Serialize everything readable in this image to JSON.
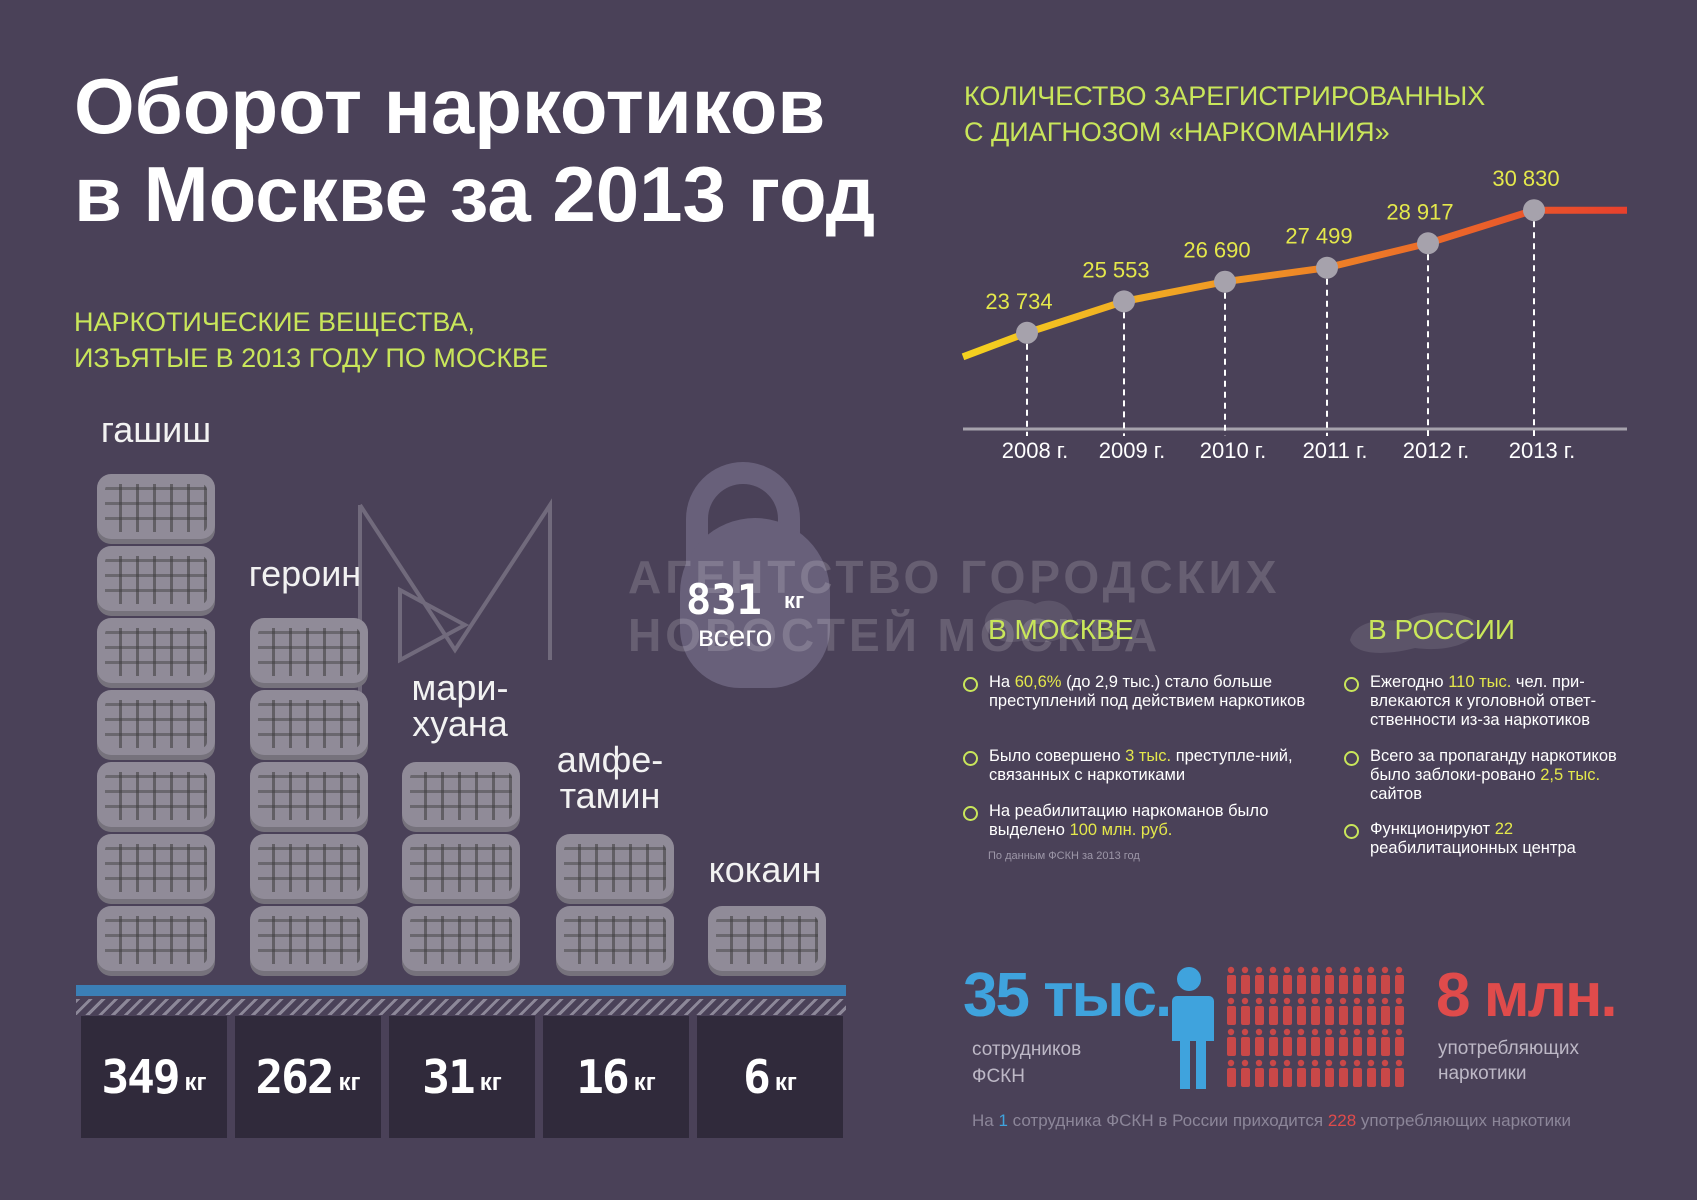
{
  "title": {
    "line1": "Оборот наркотиков",
    "line2": "в Москве за 2013 год"
  },
  "seized": {
    "subtitle_line1": "НАРКОТИЧЕСКИЕ ВЕЩЕСТВА,",
    "subtitle_line2": "ИЗЪЯТЫЕ В 2013 ГОДУ ПО МОСКВЕ",
    "unit": "кг",
    "items": [
      {
        "label_line1": "гашиш",
        "label_line2": "",
        "weight": "349",
        "value": 349
      },
      {
        "label_line1": "героин",
        "label_line2": "",
        "weight": "262",
        "value": 262
      },
      {
        "label_line1": "мари-",
        "label_line2": "хуана",
        "weight": "31",
        "value": 31
      },
      {
        "label_line1": "амфе-",
        "label_line2": "тамин",
        "weight": "16",
        "value": 16
      },
      {
        "label_line1": "кокаин",
        "label_line2": "",
        "weight": "6",
        "value": 6
      }
    ],
    "total": "831",
    "total_unit": "кг",
    "total_label": "всего"
  },
  "watermark": {
    "line1": "АГЕНТСТВО ГОРОДСКИХ",
    "line2": "НОВОСТЕЙ МОСКВА"
  },
  "chart_data": {
    "type": "line",
    "title_line1": "КОЛИЧЕСТВО ЗАРЕГИСТРИРОВАННЫХ",
    "title_line2": "С ДИАГНОЗОМ «НАРКОМАНИЯ»",
    "categories": [
      "2008 г.",
      "2009 г.",
      "2010 г.",
      "2011 г.",
      "2012 г.",
      "2013 г."
    ],
    "values": [
      23734,
      25553,
      26690,
      27499,
      28917,
      30830
    ],
    "value_labels": [
      "23 734",
      "25 553",
      "26 690",
      "27 499",
      "28 917",
      "30 830"
    ],
    "colors": {
      "start": "#f4d21f",
      "end": "#e8402d",
      "point": "#a6a2ac"
    }
  },
  "moscow": {
    "heading": "В МОСКВЕ",
    "bullets": [
      {
        "pre": "На ",
        "hl": "60,6%",
        "post": " (до 2,9 тыс.) стало больше преступлений под действием наркотиков"
      },
      {
        "pre": "Было совершено ",
        "hl": "3 тыс.",
        "post": " преступле-ний, связанных с наркотиками"
      },
      {
        "pre": "На реабилитацию наркоманов было выделено ",
        "hl": "100 млн. руб.",
        "post": ""
      }
    ],
    "source": "По данным ФСКН за 2013 год"
  },
  "russia": {
    "heading": "В РОССИИ",
    "bullets": [
      {
        "pre": "Ежегодно ",
        "hl": "110 тыс.",
        "post": " чел. при-влекаются к уголовной ответ-ственности из-за наркотиков"
      },
      {
        "pre": "Всего за пропаганду наркотиков было заблоки-ровано ",
        "hl": "2,5 тыс.",
        "post": " сайтов"
      },
      {
        "pre": "Функционируют ",
        "hl": "22",
        "post": " реабилитационных центра"
      }
    ]
  },
  "stats": {
    "staff_value": "35 тыс.",
    "staff_label_line1": "сотрудников",
    "staff_label_line2": "ФСКН",
    "users_value": "8 млн.",
    "users_label_line1": "употребляющих",
    "users_label_line2": "наркотики",
    "footer_pre": "На ",
    "footer_hl1": "1",
    "footer_mid": " сотрудника ФСКН в России приходится ",
    "footer_hl2": "228",
    "footer_post": " употребляющих наркотики",
    "colors": {
      "staff": "#3fa3dd",
      "users": "#e04b4b"
    }
  }
}
